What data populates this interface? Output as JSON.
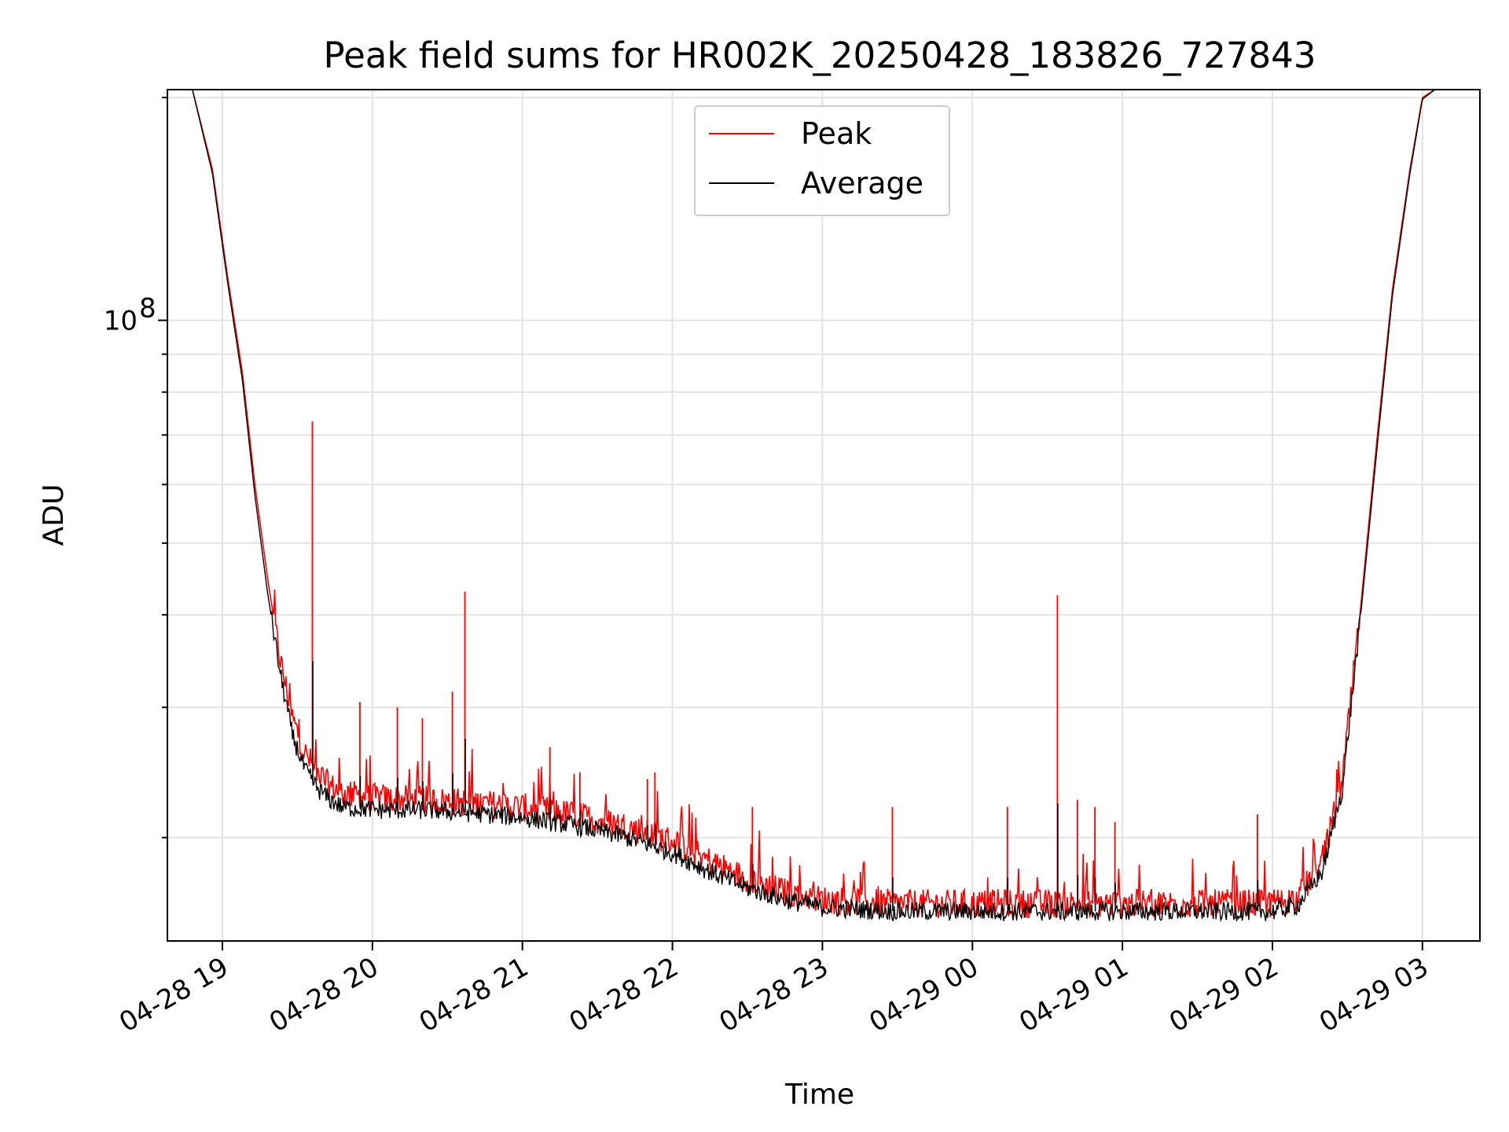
{
  "chart_data": {
    "type": "line",
    "title": "Peak field sums for HR002K_20250428_183826_727843",
    "xlabel": "Time",
    "ylabel": "ADU",
    "yscale": "log",
    "grid": true,
    "legend_position": "top-center",
    "x_ticks": [
      "04-28 19",
      "04-28 20",
      "04-28 21",
      "04-28 22",
      "04-28 23",
      "04-29 00",
      "04-29 01",
      "04-29 02",
      "04-29 03"
    ],
    "y_tick_major_label": "10^8",
    "y_tick_major": {
      "base": "10",
      "exp": "8"
    },
    "xlim": [
      "2025-04-28 18:38",
      "2025-04-29 03:23"
    ],
    "ylim": [
      14500000,
      205000000
    ],
    "series": [
      {
        "name": "Peak",
        "color": "#ff0000",
        "x": [
          "2025-04-28 18:39",
          "2025-04-28 18:48",
          "2025-04-28 18:56",
          "2025-04-28 19:02",
          "2025-04-28 19:08",
          "2025-04-28 19:13",
          "2025-04-28 19:18",
          "2025-04-28 19:23",
          "2025-04-28 19:28",
          "2025-04-28 19:33",
          "2025-04-28 19:38",
          "2025-04-28 19:43",
          "2025-04-28 19:48",
          "2025-04-28 19:55",
          "2025-04-28 20:05",
          "2025-04-28 20:20",
          "2025-04-28 20:40",
          "2025-04-28 21:00",
          "2025-04-28 21:20",
          "2025-04-28 21:40",
          "2025-04-28 22:00",
          "2025-04-28 22:15",
          "2025-04-28 22:30",
          "2025-04-28 22:45",
          "2025-04-28 23:00",
          "2025-04-28 23:30",
          "2025-04-29 00:00",
          "2025-04-29 00:30",
          "2025-04-29 01:00",
          "2025-04-29 01:30",
          "2025-04-29 02:00",
          "2025-04-29 02:10",
          "2025-04-29 02:20",
          "2025-04-29 02:28",
          "2025-04-29 02:35",
          "2025-04-29 02:42",
          "2025-04-29 02:48",
          "2025-04-29 02:55",
          "2025-04-29 03:00",
          "2025-04-29 03:05",
          "2025-04-29 03:23"
        ],
        "y": [
          205000000,
          205000000,
          160000000,
          115000000,
          85000000,
          60000000,
          45000000,
          35000000,
          29000000,
          26000000,
          24500000,
          23500000,
          23000000,
          22800000,
          22600000,
          22500000,
          22300000,
          22000000,
          21500000,
          20800000,
          19800000,
          18600000,
          17600000,
          16900000,
          16500000,
          16300000,
          16300000,
          16300000,
          16300000,
          16300000,
          16300000,
          16600000,
          18500000,
          24000000,
          40000000,
          70000000,
          110000000,
          160000000,
          200000000,
          205000000,
          205000000
        ]
      },
      {
        "name": "Average",
        "color": "#000000",
        "x": [
          "2025-04-28 18:39",
          "2025-04-28 18:48",
          "2025-04-28 18:56",
          "2025-04-28 19:02",
          "2025-04-28 19:08",
          "2025-04-28 19:13",
          "2025-04-28 19:18",
          "2025-04-28 19:23",
          "2025-04-28 19:28",
          "2025-04-28 19:33",
          "2025-04-28 19:38",
          "2025-04-28 19:43",
          "2025-04-28 19:48",
          "2025-04-28 19:55",
          "2025-04-28 20:05",
          "2025-04-28 20:20",
          "2025-04-28 20:40",
          "2025-04-28 21:00",
          "2025-04-28 21:20",
          "2025-04-28 21:40",
          "2025-04-28 22:00",
          "2025-04-28 22:15",
          "2025-04-28 22:30",
          "2025-04-28 22:45",
          "2025-04-28 23:00",
          "2025-04-28 23:30",
          "2025-04-29 00:00",
          "2025-04-29 00:30",
          "2025-04-29 01:00",
          "2025-04-29 01:30",
          "2025-04-29 02:00",
          "2025-04-29 02:10",
          "2025-04-29 02:20",
          "2025-04-29 02:28",
          "2025-04-29 02:35",
          "2025-04-29 02:42",
          "2025-04-29 02:48",
          "2025-04-29 02:55",
          "2025-04-29 03:00",
          "2025-04-29 03:05",
          "2025-04-29 03:23"
        ],
        "y": [
          205000000,
          205000000,
          158000000,
          113000000,
          83000000,
          58000000,
          43000000,
          33500000,
          27500000,
          24700000,
          23300000,
          22500000,
          22000000,
          21900000,
          21800000,
          21800000,
          21600000,
          21300000,
          20800000,
          20100000,
          19100000,
          18000000,
          17100000,
          16500000,
          16100000,
          15900000,
          15900000,
          15900000,
          15900000,
          15900000,
          15900000,
          16200000,
          18000000,
          23300000,
          39000000,
          68000000,
          108000000,
          158000000,
          199000000,
          205000000,
          205000000
        ]
      }
    ],
    "spikes": [
      {
        "x": "2025-04-28 19:36",
        "y": 73000000
      },
      {
        "x": "2025-04-28 19:55",
        "y": 30500000
      },
      {
        "x": "2025-04-28 20:10",
        "y": 30000000
      },
      {
        "x": "2025-04-28 20:20",
        "y": 29000000
      },
      {
        "x": "2025-04-28 20:32",
        "y": 31500000
      },
      {
        "x": "2025-04-28 20:37",
        "y": 43000000
      },
      {
        "x": "2025-04-28 21:11",
        "y": 26500000
      },
      {
        "x": "2025-04-28 21:23",
        "y": 24500000
      },
      {
        "x": "2025-04-28 21:50",
        "y": 24000000
      },
      {
        "x": "2025-04-28 21:53",
        "y": 24500000
      },
      {
        "x": "2025-04-28 22:32",
        "y": 22000000
      },
      {
        "x": "2025-04-28 23:28",
        "y": 22000000
      },
      {
        "x": "2025-04-29 00:14",
        "y": 22000000
      },
      {
        "x": "2025-04-29 00:34",
        "y": 42500000
      },
      {
        "x": "2025-04-29 00:42",
        "y": 22500000
      },
      {
        "x": "2025-04-29 00:49",
        "y": 22000000
      },
      {
        "x": "2025-04-29 00:57",
        "y": 21000000
      },
      {
        "x": "2025-04-29 01:54",
        "y": 21500000
      }
    ]
  }
}
